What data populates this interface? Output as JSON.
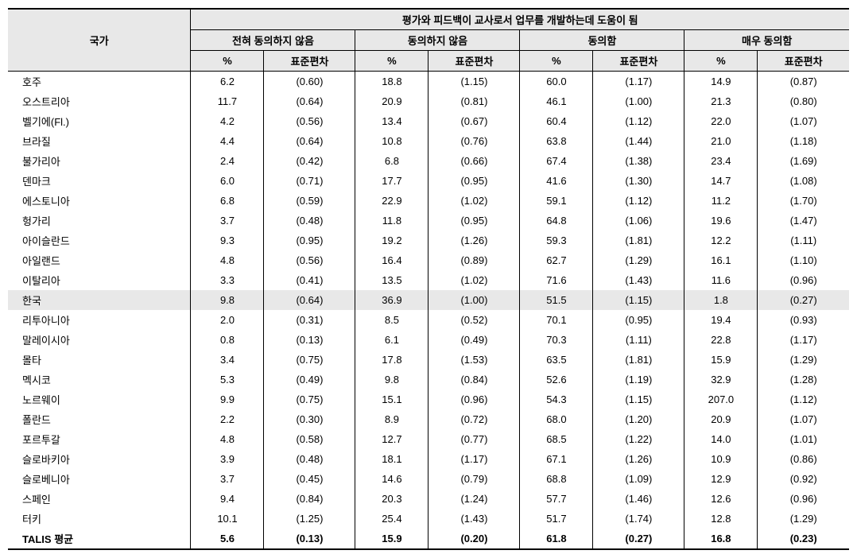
{
  "header": {
    "country_label": "국가",
    "main_title": "평가와 피드백이 교사로서 업무를 개발하는데 도움이 됨",
    "levels": [
      "전혀 동의하지 않음",
      "동의하지 않음",
      "동의함",
      "매우 동의함"
    ],
    "sub": [
      "%",
      "표준편차"
    ]
  },
  "highlight_row_index": 11,
  "rows": [
    {
      "c": "호주",
      "v": [
        "6.2",
        "(0.60)",
        "18.8",
        "(1.15)",
        "60.0",
        "(1.17)",
        "14.9",
        "(0.87)"
      ]
    },
    {
      "c": "오스트리아",
      "v": [
        "11.7",
        "(0.64)",
        "20.9",
        "(0.81)",
        "46.1",
        "(1.00)",
        "21.3",
        "(0.80)"
      ]
    },
    {
      "c": "벨기에(Fl.)",
      "v": [
        "4.2",
        "(0.56)",
        "13.4",
        "(0.67)",
        "60.4",
        "(1.12)",
        "22.0",
        "(1.07)"
      ]
    },
    {
      "c": "브라질",
      "v": [
        "4.4",
        "(0.64)",
        "10.8",
        "(0.76)",
        "63.8",
        "(1.44)",
        "21.0",
        "(1.18)"
      ]
    },
    {
      "c": "불가리아",
      "v": [
        "2.4",
        "(0.42)",
        "6.8",
        "(0.66)",
        "67.4",
        "(1.38)",
        "23.4",
        "(1.69)"
      ]
    },
    {
      "c": "덴마크",
      "v": [
        "6.0",
        "(0.71)",
        "17.7",
        "(0.95)",
        "41.6",
        "(1.30)",
        "14.7",
        "(1.08)"
      ]
    },
    {
      "c": "에스토니아",
      "v": [
        "6.8",
        "(0.59)",
        "22.9",
        "(1.02)",
        "59.1",
        "(1.12)",
        "11.2",
        "(1.70)"
      ]
    },
    {
      "c": "헝가리",
      "v": [
        "3.7",
        "(0.48)",
        "11.8",
        "(0.95)",
        "64.8",
        "(1.06)",
        "19.6",
        "(1.47)"
      ]
    },
    {
      "c": "아이슬란드",
      "v": [
        "9.3",
        "(0.95)",
        "19.2",
        "(1.26)",
        "59.3",
        "(1.81)",
        "12.2",
        "(1.11)"
      ]
    },
    {
      "c": "아일랜드",
      "v": [
        "4.8",
        "(0.56)",
        "16.4",
        "(0.89)",
        "62.7",
        "(1.29)",
        "16.1",
        "(1.10)"
      ]
    },
    {
      "c": "이탈리아",
      "v": [
        "3.3",
        "(0.41)",
        "13.5",
        "(1.02)",
        "71.6",
        "(1.43)",
        "11.6",
        "(0.96)"
      ]
    },
    {
      "c": "한국",
      "v": [
        "9.8",
        "(0.64)",
        "36.9",
        "(1.00)",
        "51.5",
        "(1.15)",
        "1.8",
        "(0.27)"
      ]
    },
    {
      "c": "리투아니아",
      "v": [
        "2.0",
        "(0.31)",
        "8.5",
        "(0.52)",
        "70.1",
        "(0.95)",
        "19.4",
        "(0.93)"
      ]
    },
    {
      "c": "말레이시아",
      "v": [
        "0.8",
        "(0.13)",
        "6.1",
        "(0.49)",
        "70.3",
        "(1.11)",
        "22.8",
        "(1.17)"
      ]
    },
    {
      "c": "몰타",
      "v": [
        "3.4",
        "(0.75)",
        "17.8",
        "(1.53)",
        "63.5",
        "(1.81)",
        "15.9",
        "(1.29)"
      ]
    },
    {
      "c": "멕시코",
      "v": [
        "5.3",
        "(0.49)",
        "9.8",
        "(0.84)",
        "52.6",
        "(1.19)",
        "32.9",
        "(1.28)"
      ]
    },
    {
      "c": "노르웨이",
      "v": [
        "9.9",
        "(0.75)",
        "15.1",
        "(0.96)",
        "54.3",
        "(1.15)",
        "207.0",
        "(1.12)"
      ]
    },
    {
      "c": "폴란드",
      "v": [
        "2.2",
        "(0.30)",
        "8.9",
        "(0.72)",
        "68.0",
        "(1.20)",
        "20.9",
        "(1.07)"
      ]
    },
    {
      "c": "포르투갈",
      "v": [
        "4.8",
        "(0.58)",
        "12.7",
        "(0.77)",
        "68.5",
        "(1.22)",
        "14.0",
        "(1.01)"
      ]
    },
    {
      "c": "슬로바키아",
      "v": [
        "3.9",
        "(0.48)",
        "18.1",
        "(1.17)",
        "67.1",
        "(1.26)",
        "10.9",
        "(0.86)"
      ]
    },
    {
      "c": "슬로베니아",
      "v": [
        "3.7",
        "(0.45)",
        "14.6",
        "(0.79)",
        "68.8",
        "(1.09)",
        "12.9",
        "(0.92)"
      ]
    },
    {
      "c": "스페인",
      "v": [
        "9.4",
        "(0.84)",
        "20.3",
        "(1.24)",
        "57.7",
        "(1.46)",
        "12.6",
        "(0.96)"
      ]
    },
    {
      "c": "터키",
      "v": [
        "10.1",
        "(1.25)",
        "25.4",
        "(1.43)",
        "51.7",
        "(1.74)",
        "12.8",
        "(1.29)"
      ]
    },
    {
      "c": "TALIS 평균",
      "v": [
        "5.6",
        "(0.13)",
        "15.9",
        "(0.20)",
        "61.8",
        "(0.27)",
        "16.8",
        "(0.23)"
      ]
    }
  ],
  "colors": {
    "header_bg": "#e8e8e8",
    "highlight_bg": "#e8e8e8",
    "border": "#000000",
    "text": "#000000",
    "bg": "#ffffff"
  }
}
